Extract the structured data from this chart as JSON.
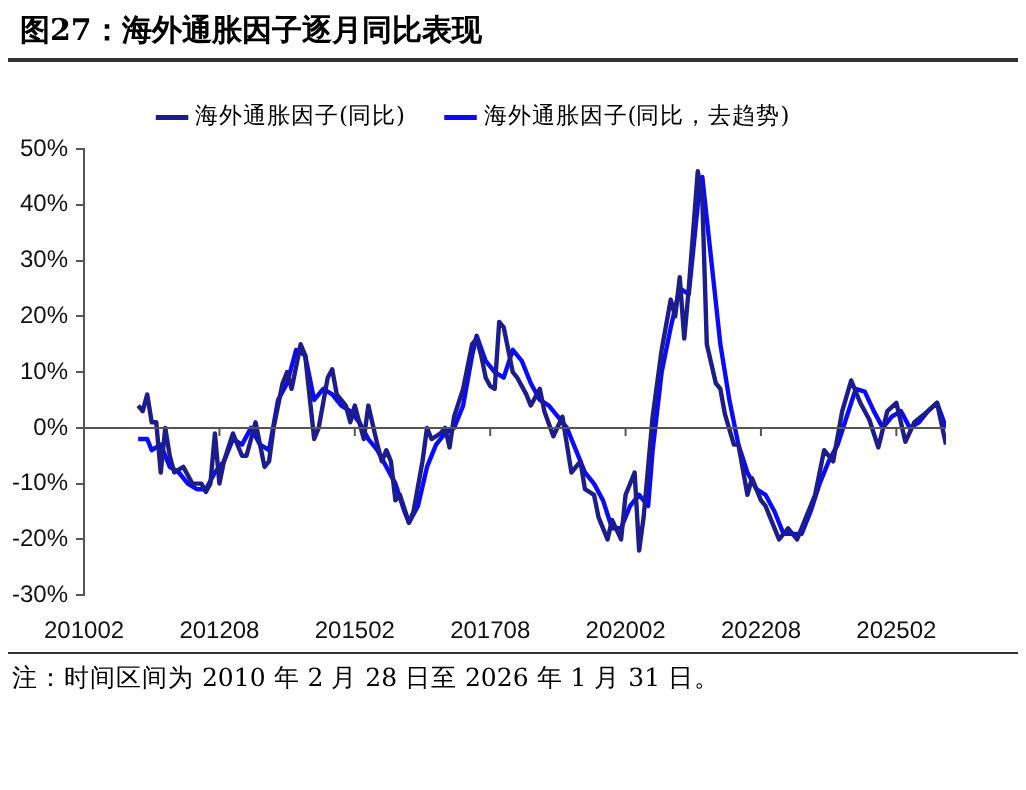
{
  "chart_data": {
    "type": "line",
    "title": "图27：海外通胀因子逐月同比表现",
    "annotations": [
      "注：时间区间为 2010 年 2 月 28 日至 2026 年 1 月 31 日。"
    ],
    "xlim": [
      "2010-02",
      "2026-01"
    ],
    "xticks": [
      {
        "value": "2010-02",
        "label": "201002"
      },
      {
        "value": "2012-08",
        "label": "201208"
      },
      {
        "value": "2015-02",
        "label": "201502"
      },
      {
        "value": "2017-08",
        "label": "201708"
      },
      {
        "value": "2020-02",
        "label": "202002"
      },
      {
        "value": "2022-08",
        "label": "202208"
      },
      {
        "value": "2025-02",
        "label": "202502"
      }
    ],
    "ylim": [
      -30,
      50
    ],
    "yticks": [
      {
        "value": -30,
        "label": "-30%"
      },
      {
        "value": -20,
        "label": "-20%"
      },
      {
        "value": -10,
        "label": "-10%"
      },
      {
        "value": 0,
        "label": "0%"
      },
      {
        "value": 10,
        "label": "10%"
      },
      {
        "value": 20,
        "label": "20%"
      },
      {
        "value": 30,
        "label": "30%"
      },
      {
        "value": 40,
        "label": "40%"
      },
      {
        "value": 50,
        "label": "50%"
      }
    ],
    "grid": false,
    "legend": "top",
    "marker": "none",
    "line_style": "solid",
    "ref_lines": [
      {
        "axis": "y",
        "value": 0,
        "color": "#555555"
      }
    ],
    "series": [
      {
        "name": "海外通胀因子(同比)",
        "color": "#1c1c8c",
        "x": [
          "2011-02",
          "2011-03",
          "2011-04",
          "2011-05",
          "2011-06",
          "2011-07",
          "2011-08",
          "2011-09",
          "2011-10",
          "2011-12",
          "2012-02",
          "2012-04",
          "2012-05",
          "2012-06",
          "2012-07",
          "2012-08",
          "2012-09",
          "2012-11",
          "2013-01",
          "2013-02",
          "2013-04",
          "2013-06",
          "2013-07",
          "2013-08",
          "2013-10",
          "2013-11",
          "2013-12",
          "2014-02",
          "2014-03",
          "2014-05",
          "2014-06",
          "2014-08",
          "2014-09",
          "2014-10",
          "2014-12",
          "2015-01",
          "2015-02",
          "2015-04",
          "2015-05",
          "2015-07",
          "2015-08",
          "2015-09",
          "2015-10",
          "2015-11",
          "2015-12",
          "2016-02",
          "2016-03",
          "2016-05",
          "2016-06",
          "2016-07",
          "2016-09",
          "2016-10",
          "2016-11",
          "2016-12",
          "2017-02",
          "2017-04",
          "2017-05",
          "2017-06",
          "2017-07",
          "2017-08",
          "2017-09",
          "2017-10",
          "2017-11",
          "2018-01",
          "2018-02",
          "2018-04",
          "2018-05",
          "2018-07",
          "2018-08",
          "2018-10",
          "2018-12",
          "2019-02",
          "2019-04",
          "2019-05",
          "2019-07",
          "2019-08",
          "2019-10",
          "2019-11",
          "2020-01",
          "2020-02",
          "2020-04",
          "2020-05",
          "2020-06",
          "2020-08",
          "2020-10",
          "2020-12",
          "2021-01",
          "2021-02",
          "2021-03",
          "2021-04",
          "2021-06",
          "2021-07",
          "2021-08",
          "2021-10",
          "2021-11",
          "2021-12",
          "2022-02",
          "2022-03",
          "2022-05",
          "2022-06",
          "2022-08",
          "2022-09",
          "2022-12",
          "2023-02",
          "2023-04",
          "2023-06",
          "2023-08",
          "2023-10",
          "2023-12",
          "2024-02",
          "2024-04",
          "2024-06",
          "2024-08",
          "2024-10",
          "2024-12",
          "2025-02",
          "2025-04",
          "2025-06",
          "2025-09",
          "2025-11",
          "2026-01"
        ],
        "values": [
          4,
          3,
          6,
          1,
          1,
          -8,
          0,
          -5,
          -8,
          -7,
          -10,
          -10,
          -11.5,
          -10,
          -1,
          -10,
          -6,
          -1,
          -5,
          -5,
          1,
          -7,
          -6,
          0,
          8,
          10,
          7,
          15,
          13,
          -2,
          0,
          9,
          10.5,
          6,
          4,
          1,
          4,
          -2,
          4,
          -3,
          -6,
          -4,
          -6,
          -13,
          -12,
          -17,
          -15,
          -6,
          0,
          -2,
          -1,
          0,
          -3.5,
          2,
          7,
          15,
          16,
          13,
          9,
          7.5,
          7,
          19,
          18,
          10,
          9,
          6,
          4,
          7,
          3,
          -1.5,
          2,
          -8,
          -6,
          -11,
          -12,
          -16,
          -20,
          -16.5,
          -20,
          -12,
          -8,
          -22,
          -16,
          2,
          14,
          23,
          20,
          27,
          16,
          25,
          46,
          41,
          15,
          8,
          7,
          2.5,
          -3,
          -3,
          -12,
          -9,
          -13,
          -14,
          -20,
          -18,
          -20,
          -16,
          -12,
          -4,
          -6,
          3,
          8.5,
          4.5,
          1.5,
          -3.5,
          3,
          4.5,
          -2.5,
          1,
          3,
          4.5,
          -3
        ]
      },
      {
        "name": "海外通胀因子(同比，去趋势)",
        "color": "#0a0aff",
        "x": [
          "2011-02",
          "2011-04",
          "2011-05",
          "2011-07",
          "2011-09",
          "2011-11",
          "2012-01",
          "2012-03",
          "2012-05",
          "2012-07",
          "2012-09",
          "2012-11",
          "2013-01",
          "2013-03",
          "2013-05",
          "2013-07",
          "2013-09",
          "2013-11",
          "2014-01",
          "2014-03",
          "2014-05",
          "2014-07",
          "2014-09",
          "2014-11",
          "2015-01",
          "2015-03",
          "2015-05",
          "2015-07",
          "2015-09",
          "2015-11",
          "2016-01",
          "2016-02",
          "2016-04",
          "2016-06",
          "2016-08",
          "2016-10",
          "2016-12",
          "2017-02",
          "2017-04",
          "2017-05",
          "2017-07",
          "2017-09",
          "2017-11",
          "2018-01",
          "2018-03",
          "2018-05",
          "2018-07",
          "2018-09",
          "2018-11",
          "2019-01",
          "2019-03",
          "2019-05",
          "2019-07",
          "2019-09",
          "2019-11",
          "2020-01",
          "2020-03",
          "2020-05",
          "2020-07",
          "2020-08",
          "2020-10",
          "2020-12",
          "2021-02",
          "2021-04",
          "2021-06",
          "2021-07",
          "2021-09",
          "2021-11",
          "2022-01",
          "2022-03",
          "2022-05",
          "2022-07",
          "2022-09",
          "2022-11",
          "2023-01",
          "2023-03",
          "2023-05",
          "2023-07",
          "2023-09",
          "2023-11",
          "2024-01",
          "2024-03",
          "2024-05",
          "2024-07",
          "2024-09",
          "2024-11",
          "2025-01",
          "2025-03",
          "2025-05",
          "2025-07",
          "2025-09",
          "2025-11",
          "2026-01"
        ],
        "values": [
          -2,
          -2,
          -4,
          -3,
          -7,
          -8,
          -10,
          -11,
          -11,
          -8,
          -6,
          -2,
          -3,
          0,
          -3,
          -4,
          5,
          8,
          14,
          13,
          5,
          7,
          6,
          4,
          3,
          1,
          -2,
          -4,
          -7,
          -10,
          -15,
          -17,
          -14,
          -7,
          -3,
          -1,
          0,
          4,
          13,
          16.5,
          12,
          10,
          9,
          14,
          12,
          8,
          5,
          4,
          2,
          0,
          -4,
          -8,
          -10,
          -13,
          -18,
          -18,
          -14,
          -12,
          -14,
          -4,
          10,
          18,
          25,
          24,
          40,
          45,
          30,
          15,
          5,
          -3,
          -8,
          -11,
          -12,
          -15,
          -19,
          -19,
          -19,
          -15,
          -10,
          -6,
          -3,
          2,
          7,
          6.5,
          3,
          0,
          2,
          3,
          0,
          1,
          3,
          4.5,
          0
        ]
      }
    ]
  }
}
